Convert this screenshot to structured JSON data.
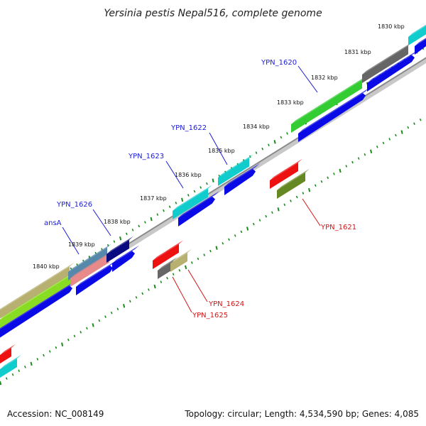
{
  "title": "Yersinia pestis Nepal516, complete genome",
  "footer": {
    "accession": "Accession: NC_008149",
    "summary": "Topology: circular; Length: 4,534,590 bp; Genes: 4,085"
  },
  "tick_labels": [
    "1830 kbp",
    "1831 kbp",
    "1832 kbp",
    "1833 kbp",
    "1834 kbp",
    "1835 kbp",
    "1836 kbp",
    "1837 kbp",
    "1838 kbp",
    "1839 kbp",
    "1840 kbp"
  ],
  "gene_labels_forward": [
    "YPN_1620",
    "YPN_1622",
    "YPN_1623",
    "YPN_1626",
    "ansA"
  ],
  "gene_labels_reverse": [
    "YPN_1621",
    "YPN_1624",
    "YPN_1625"
  ],
  "colors": {
    "backbone": "#8a8a8a",
    "tick": "#1a8a1a",
    "forward_label": "#1a1adb",
    "reverse_label": "#d41414",
    "cds_blue": "#0a0ae6",
    "gene_green": "#33cc33",
    "gene_cyan": "#11cccc",
    "gene_gray": "#666666",
    "gene_navy": "#0a0a80",
    "gene_steel": "#5588aa",
    "gene_pink": "#e88a8a",
    "gene_khaki": "#b8b070",
    "gene_lime": "#88dd22",
    "gene_red": "#ee1111",
    "gene_olive": "#668822"
  }
}
